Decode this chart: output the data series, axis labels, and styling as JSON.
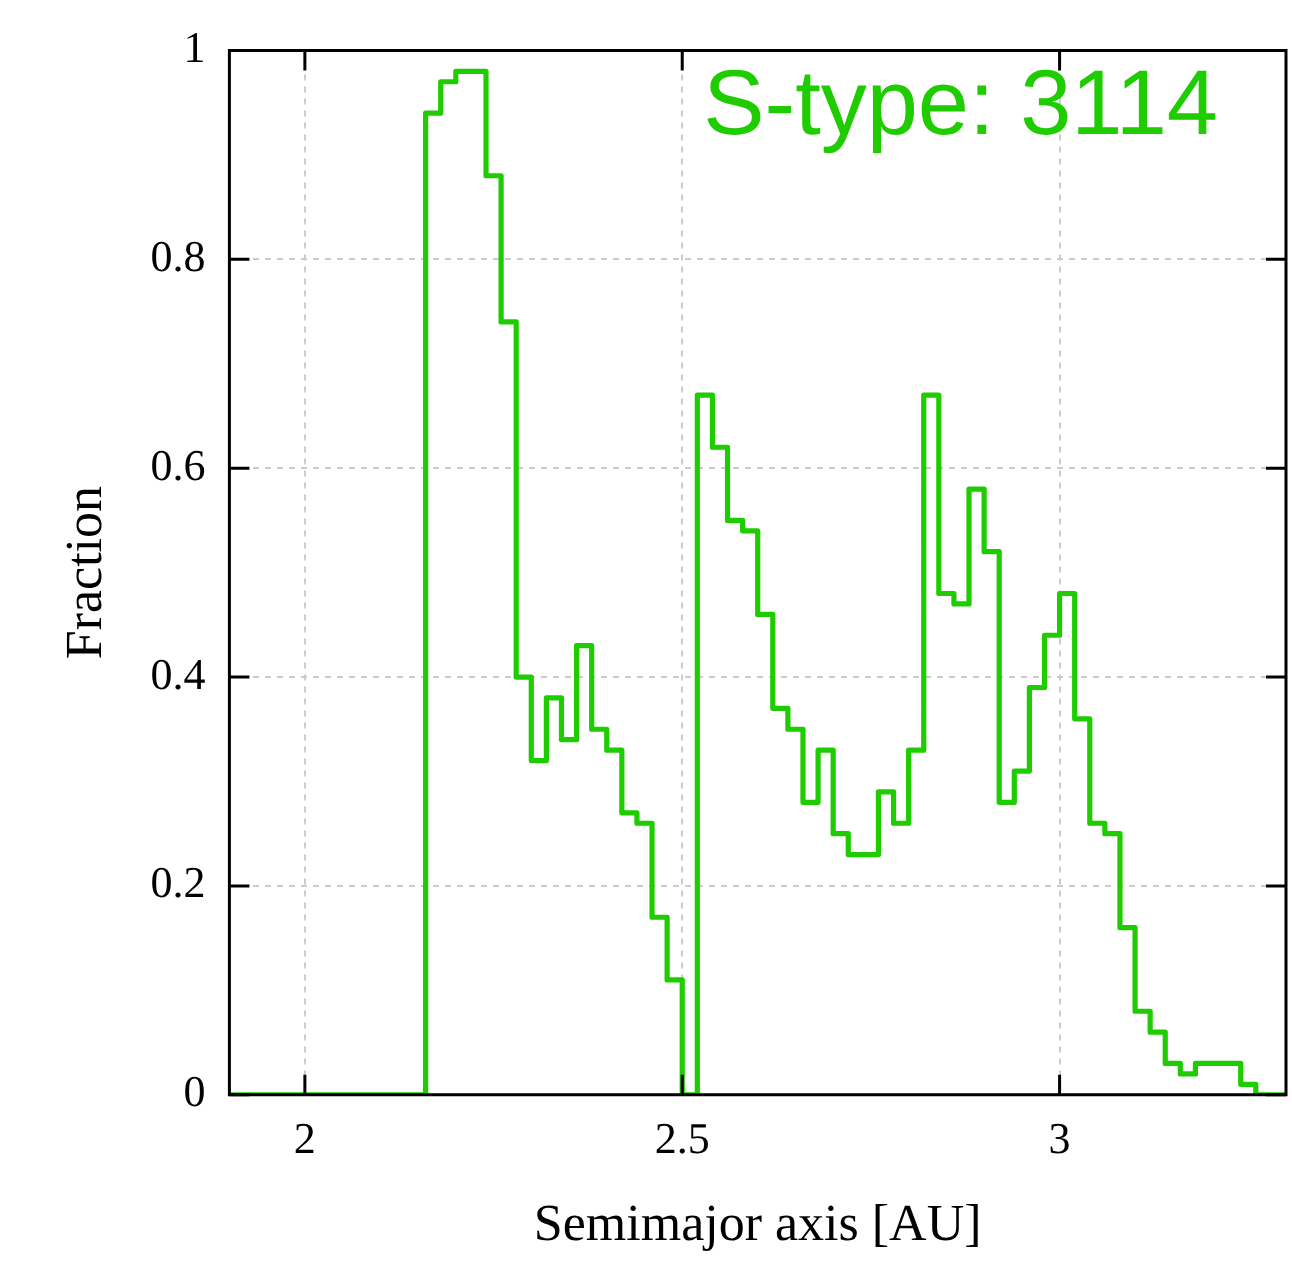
{
  "chart_data": {
    "type": "histogram",
    "xlabel": "Semimajor axis [AU]",
    "ylabel": "Fraction",
    "annotations": [
      "S-type: 3114"
    ],
    "color": "#1fcc00",
    "grid": true,
    "bins": [
      1.9,
      1.92,
      1.94,
      1.96,
      1.98,
      2.0,
      2.02,
      2.04,
      2.06,
      2.08,
      2.1,
      2.12,
      2.14,
      2.16,
      2.18,
      2.2,
      2.22,
      2.24,
      2.26,
      2.28,
      2.3,
      2.32,
      2.34,
      2.36,
      2.38,
      2.4,
      2.42,
      2.44,
      2.46,
      2.48,
      2.5,
      2.52,
      2.54,
      2.56,
      2.58,
      2.6,
      2.62,
      2.64,
      2.66,
      2.68,
      2.7,
      2.72,
      2.74,
      2.76,
      2.78,
      2.8,
      2.82,
      2.84,
      2.86,
      2.88,
      2.9,
      2.92,
      2.94,
      2.96,
      2.98,
      3.0,
      3.02,
      3.04,
      3.06,
      3.08,
      3.1,
      3.12,
      3.14,
      3.16,
      3.18,
      3.2,
      3.22,
      3.24,
      3.26,
      3.28,
      3.3
    ],
    "values": [
      0,
      0,
      0,
      0,
      0,
      0,
      0,
      0,
      0,
      0,
      0,
      0,
      0,
      0.94,
      0.97,
      0.98,
      0.98,
      0.88,
      0.74,
      0.4,
      0.32,
      0.38,
      0.34,
      0.43,
      0.35,
      0.33,
      0.27,
      0.26,
      0.17,
      0.11,
      0,
      0.67,
      0.62,
      0.55,
      0.54,
      0.46,
      0.37,
      0.35,
      0.28,
      0.33,
      0.25,
      0.23,
      0.23,
      0.29,
      0.26,
      0.33,
      0.67,
      0.48,
      0.47,
      0.58,
      0.52,
      0.28,
      0.31,
      0.39,
      0.44,
      0.48,
      0.36,
      0.26,
      0.25,
      0.16,
      0.08,
      0.06,
      0.03,
      0.02,
      0.03,
      0.03,
      0.03,
      0.01,
      0,
      0
    ],
    "xlim": [
      1.9,
      3.3
    ],
    "ylim": [
      0,
      1
    ],
    "xticks": [
      2,
      2.5,
      3
    ],
    "yticks": [
      0,
      0.2,
      0.4,
      0.6,
      0.8,
      1
    ]
  }
}
